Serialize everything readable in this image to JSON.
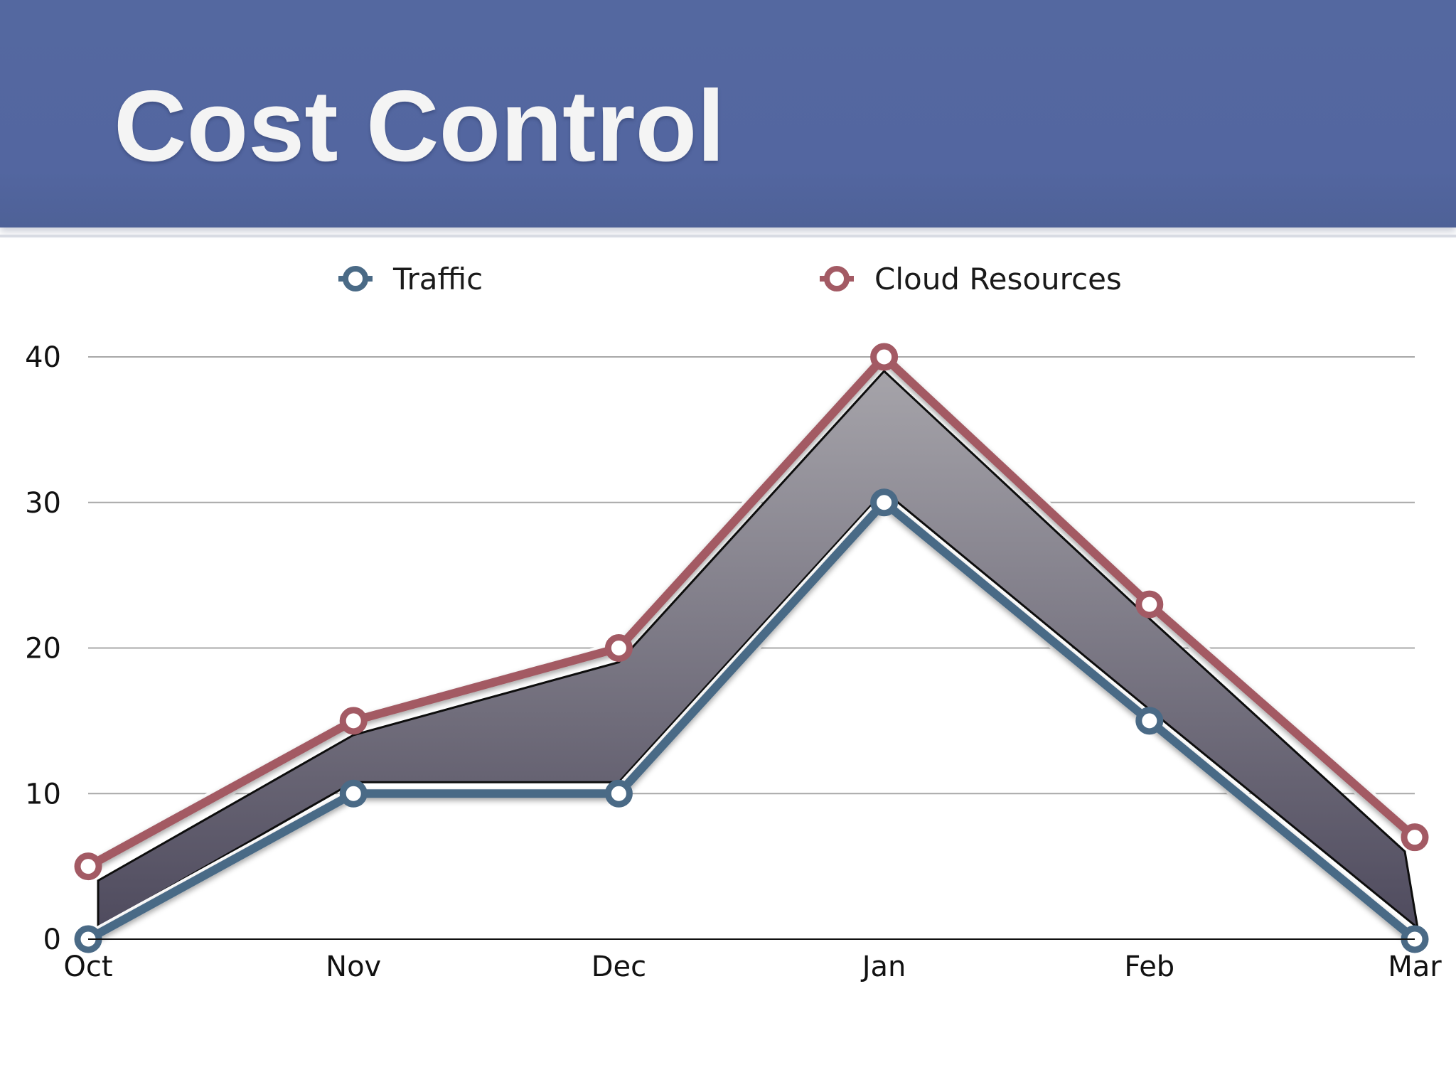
{
  "slide": {
    "title": "Cost Control"
  },
  "chart_data": {
    "type": "line",
    "categories": [
      "Oct",
      "Nov",
      "Dec",
      "Jan",
      "Feb",
      "Mar"
    ],
    "series": [
      {
        "name": "Traffic",
        "values": [
          0,
          10,
          10,
          30,
          15,
          0
        ],
        "color": "#4a6a86"
      },
      {
        "name": "Cloud Resources",
        "values": [
          5,
          15,
          20,
          40,
          23,
          7
        ],
        "color": "#a35a64"
      }
    ],
    "band_between_series": true,
    "band_color": "#7a7884",
    "yticks": [
      0,
      10,
      20,
      30,
      40
    ],
    "ylim": [
      0,
      40
    ],
    "grid": true,
    "legend_position": "top"
  }
}
